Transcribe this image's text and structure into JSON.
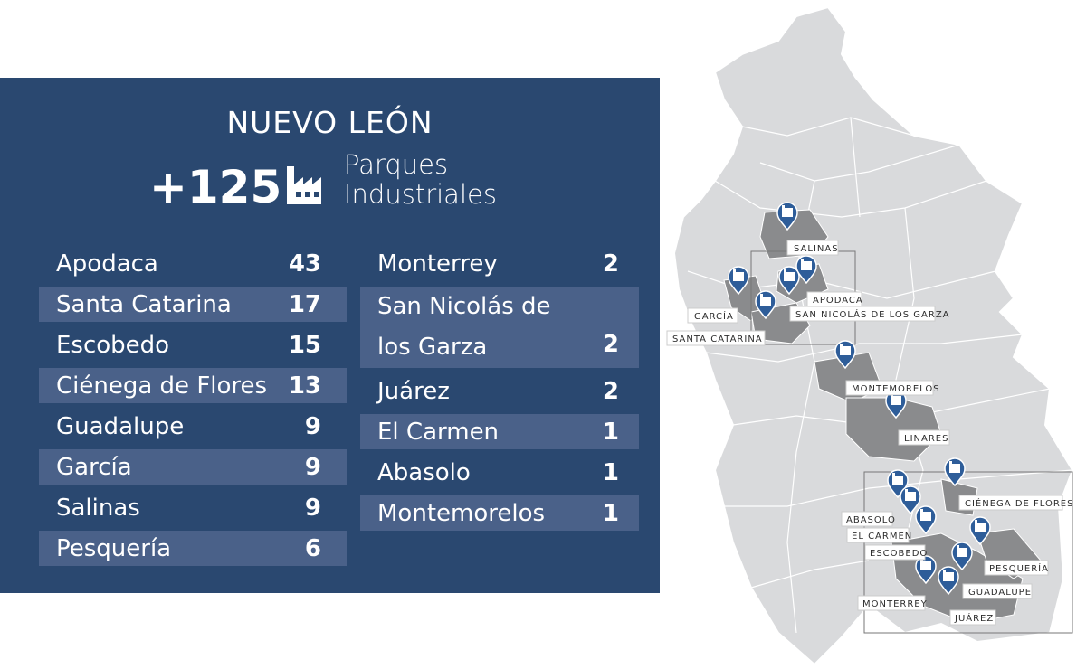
{
  "header": {
    "state": "NUEVO LEÓN",
    "count": "+125",
    "subtitle_line1": "Parques",
    "subtitle_line2": "Industriales",
    "icon": "factory-icon"
  },
  "parks_left": [
    {
      "name": "Apodaca",
      "count": "43"
    },
    {
      "name": "Santa Catarina",
      "count": "17"
    },
    {
      "name": "Escobedo",
      "count": "15"
    },
    {
      "name": "Ciénega de Flores",
      "count": "13"
    },
    {
      "name": "Guadalupe",
      "count": "9"
    },
    {
      "name": "García",
      "count": "9"
    },
    {
      "name": "Salinas",
      "count": "9"
    },
    {
      "name": "Pesquería",
      "count": "6"
    }
  ],
  "parks_right": [
    {
      "name": "Monterrey",
      "count": "2"
    },
    {
      "name_line1": "San Nicolás de",
      "name_line2": "los Garza",
      "count": "2"
    },
    {
      "name": "Juárez",
      "count": "2"
    },
    {
      "name": "El Carmen",
      "count": "1"
    },
    {
      "name": "Abasolo",
      "count": "1"
    },
    {
      "name": "Montemorelos",
      "count": "1"
    }
  ],
  "map_labels": {
    "salinas": "SALINAS",
    "apodaca": "APODACA",
    "garcia": "GARCÍA",
    "san_nicolas": "SAN NICOLÁS DE LOS GARZA",
    "santa_catarina": "SANTA CATARINA",
    "montemorelos": "MONTEMORELOS",
    "linares": "LINARES",
    "cienega": "CIÉNEGA DE FLORES",
    "abasolo": "ABASOLO",
    "el_carmen": "EL CARMEN",
    "escobedo": "ESCOBEDO",
    "pesqueria": "PESQUERÍA",
    "guadalupe": "GUADALUPE",
    "monterrey": "MONTERREY",
    "juarez": "JUÁREZ"
  },
  "colors": {
    "panel": "#2a4870",
    "row_alt": "#4a6189",
    "state_fill": "#d9dadc",
    "highlight_fill": "#8a8b8d",
    "pin": "#2e5d99"
  }
}
